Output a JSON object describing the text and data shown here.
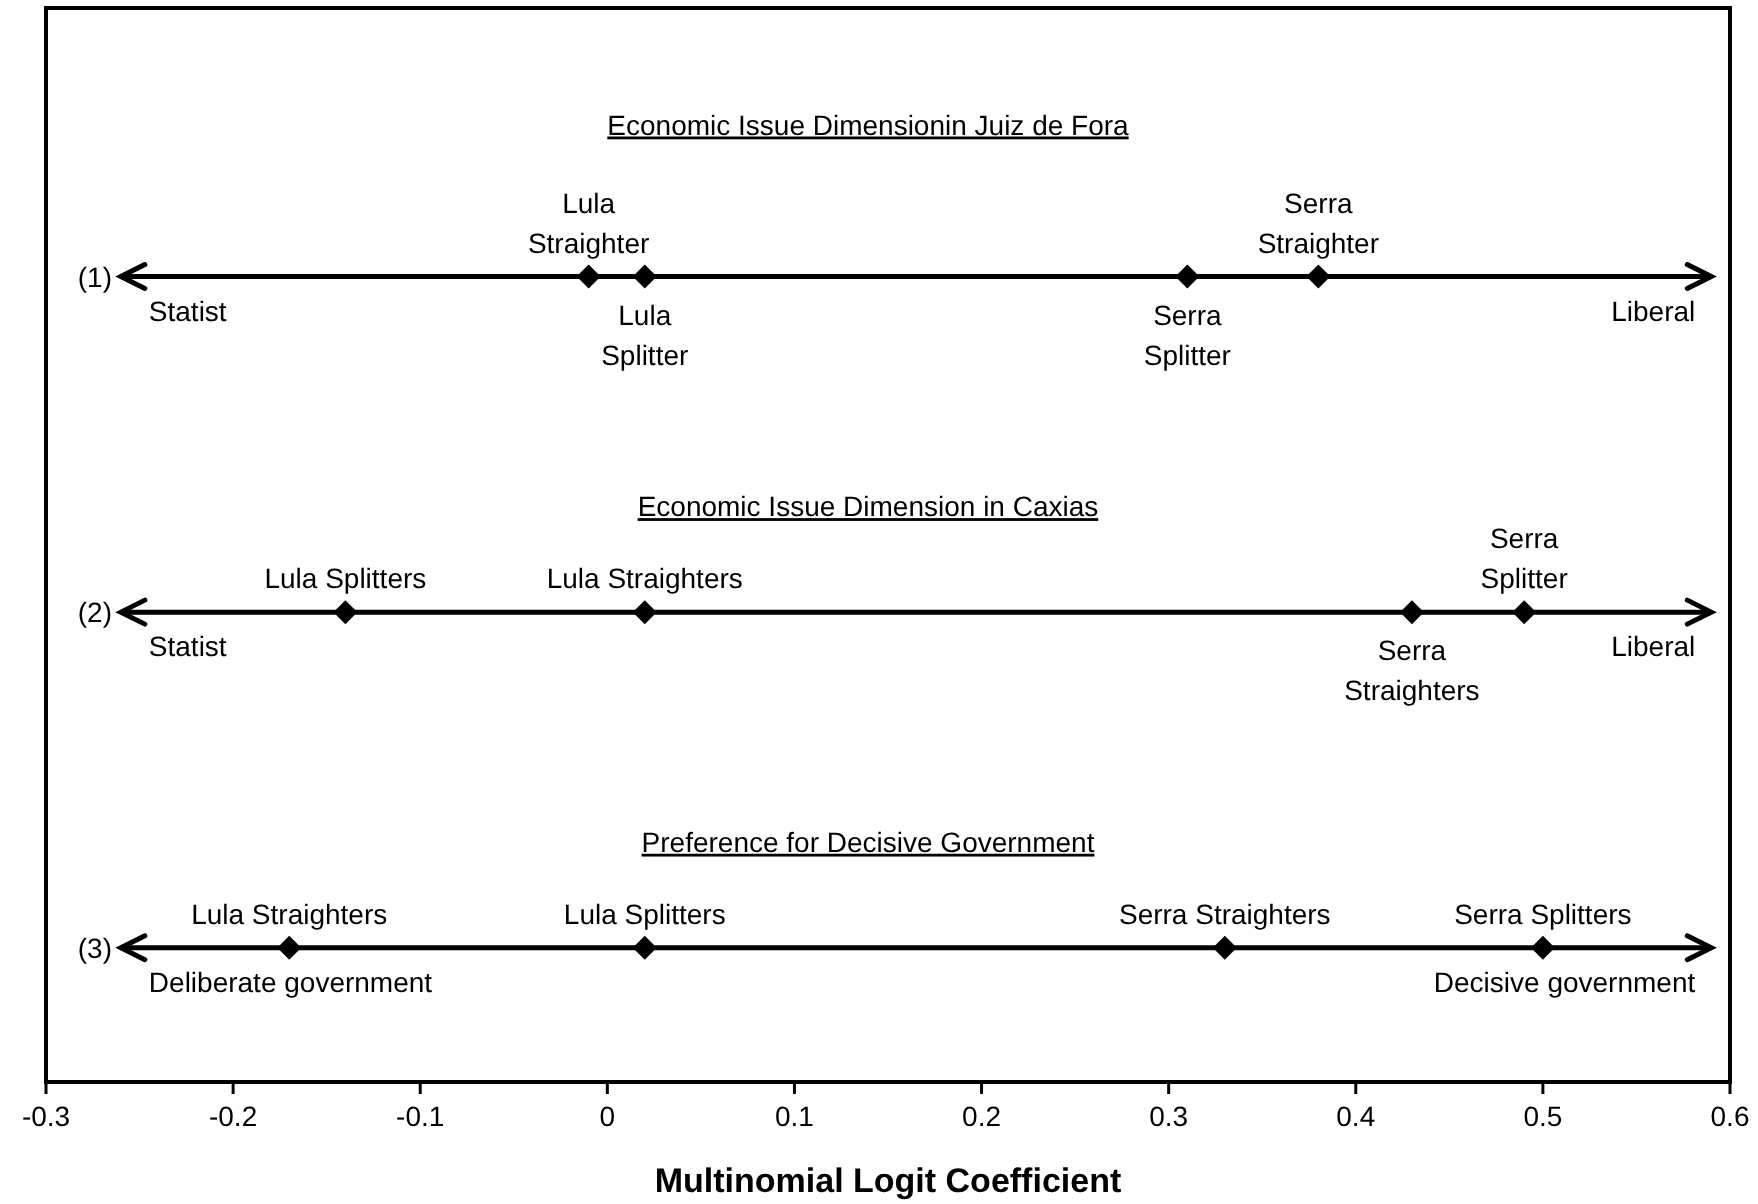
{
  "chart_data": {
    "type": "scatter",
    "xlabel": "Multinomial Logit Coefficient",
    "xlim": [
      -0.3,
      0.6
    ],
    "xticks": [
      -0.3,
      -0.2,
      -0.1,
      0,
      0.1,
      0.2,
      0.3,
      0.4,
      0.5,
      0.6
    ],
    "ylim": [
      3.4,
      0.2
    ],
    "yticks": [
      {
        "value": 1,
        "label": "(1)"
      },
      {
        "value": 2,
        "label": "(2)"
      },
      {
        "value": 3,
        "label": "(3)"
      }
    ],
    "grid": false,
    "marker": "diamond",
    "series": [
      {
        "color": "#000000",
        "x": [
          -0.01,
          0.02,
          0.31,
          0.38
        ],
        "values": [
          1,
          1,
          1,
          1
        ]
      },
      {
        "color": "#000000",
        "x": [
          -0.14,
          0.02,
          0.43,
          0.49
        ],
        "values": [
          2,
          2,
          2,
          2
        ]
      },
      {
        "color": "#000000",
        "x": [
          -0.17,
          0.02,
          0.33,
          0.5
        ],
        "values": [
          3,
          3,
          3,
          3
        ]
      }
    ],
    "ref_lines": [
      {
        "axis": "y",
        "value": 1,
        "color": "#000000"
      },
      {
        "axis": "y",
        "value": 2,
        "color": "#000000"
      },
      {
        "axis": "y",
        "value": 3,
        "color": "#000000"
      }
    ],
    "annotations": [
      "Economic Issue Dimensionin Juiz de Fora",
      "Economic Issue Dimension in Caxias",
      "Preference for Decisive Government",
      {
        "text": "Lula Straighter",
        "x": -0.01,
        "y": 1
      },
      {
        "text": "Lula Splitter",
        "x": 0.02,
        "y": 1
      },
      {
        "text": "Serra Straighter",
        "x": 0.38,
        "y": 1
      },
      {
        "text": "Serra Splitter",
        "x": 0.31,
        "y": 1
      },
      {
        "text": "Statist",
        "x": -0.26,
        "y": 1
      },
      {
        "text": "Liberal",
        "x": 0.59,
        "y": 1
      },
      {
        "text": "Lula Splitters",
        "x": -0.14,
        "y": 2
      },
      {
        "text": "Lula Straighters",
        "x": 0.02,
        "y": 2
      },
      {
        "text": "Serra Splitter",
        "x": 0.49,
        "y": 2
      },
      {
        "text": "Serra Straighters",
        "x": 0.43,
        "y": 2
      },
      {
        "text": "Statist",
        "x": -0.26,
        "y": 2
      },
      {
        "text": "Liberal",
        "x": 0.59,
        "y": 2
      },
      {
        "text": "Lula Straighters",
        "x": -0.17,
        "y": 3
      },
      {
        "text": "Lula Splitters",
        "x": 0.02,
        "y": 3
      },
      {
        "text": "Serra Straighters",
        "x": 0.33,
        "y": 3
      },
      {
        "text": "Serra Splitters",
        "x": 0.5,
        "y": 3
      },
      {
        "text": "Deliberate government",
        "x": -0.26,
        "y": 3
      },
      {
        "text": "Decisive government",
        "x": 0.59,
        "y": 3
      }
    ]
  }
}
